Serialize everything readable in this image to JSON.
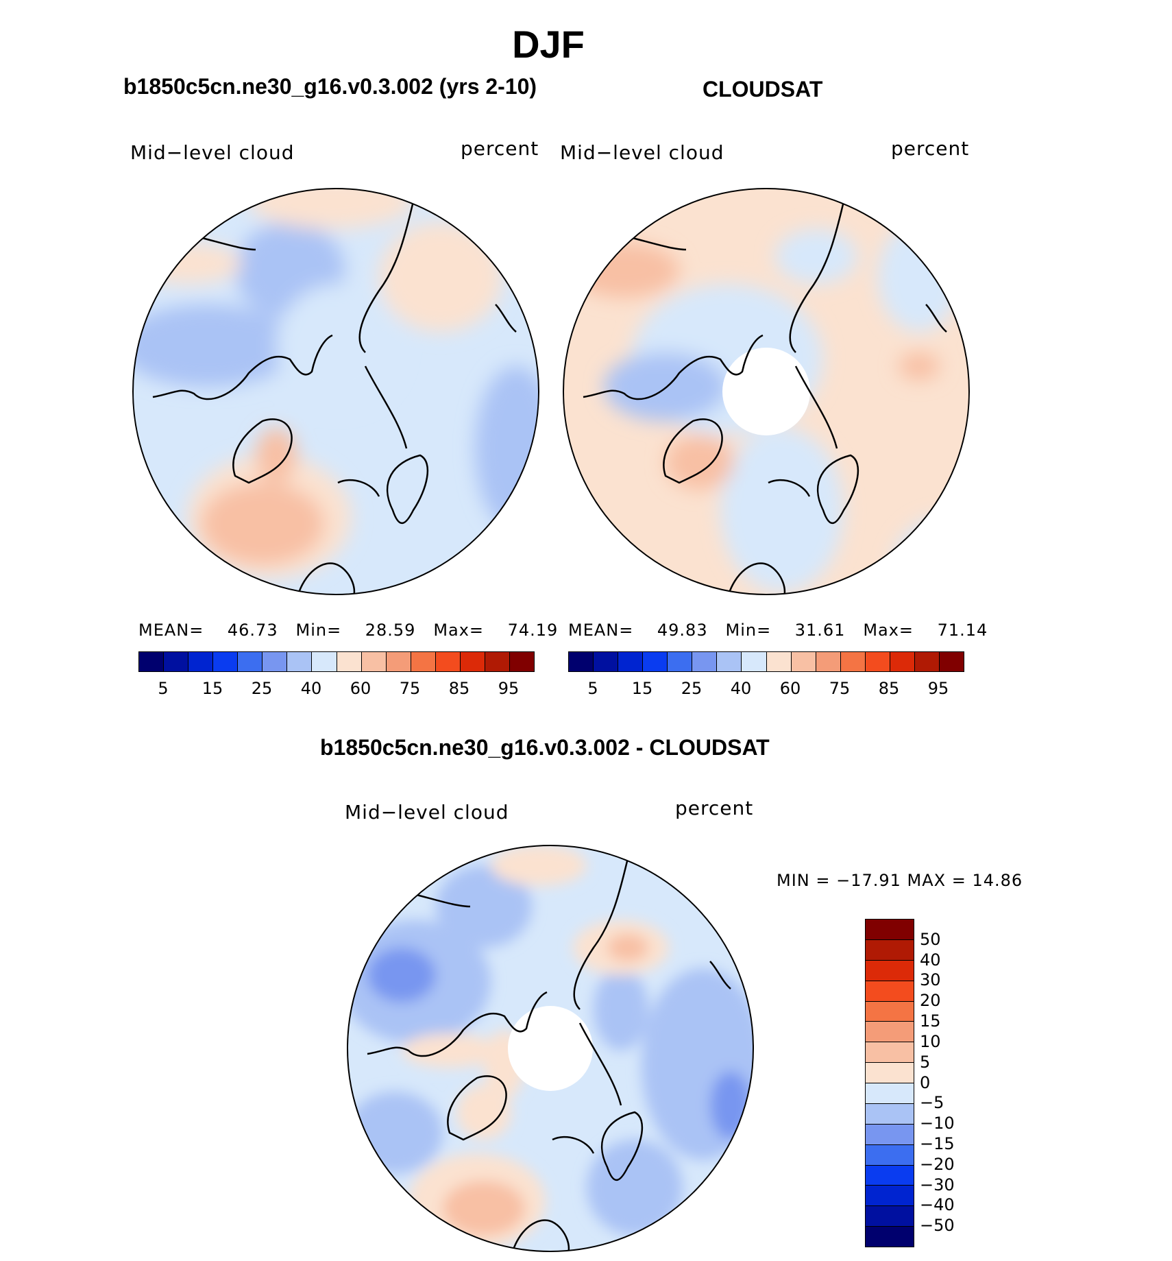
{
  "figure": {
    "title": "DJF",
    "diff_title": "b1850c5cn.ne30_g16.v0.3.002 - CLOUDSAT"
  },
  "panels": [
    {
      "title": "b1850c5cn.ne30_g16.v0.3.002 (yrs 2-10)",
      "variable": "Mid−level cloud",
      "units": "percent",
      "stats": {
        "mean_label": "MEAN=",
        "mean": "46.73",
        "min_label": "Min=",
        "min": "28.59",
        "max_label": "Max=",
        "max": "74.19"
      }
    },
    {
      "title": "CLOUDSAT",
      "variable": "Mid−level cloud",
      "units": "percent",
      "stats": {
        "mean_label": "MEAN=",
        "mean": "49.83",
        "min_label": "Min=",
        "min": "31.61",
        "max_label": "Max=",
        "max": "71.14"
      }
    }
  ],
  "diff_panel": {
    "variable": "Mid−level cloud",
    "units": "percent",
    "minmax": "MIN = −17.91 MAX =   14.86"
  },
  "colorbar_abs": {
    "colors": [
      "#00006e",
      "#0010a0",
      "#0024d0",
      "#0a3cf0",
      "#3c6ef0",
      "#7896f0",
      "#aac3f5",
      "#d7e8fb",
      "#fbe2d0",
      "#f8c0a4",
      "#f49c78",
      "#f47444",
      "#f34c1e",
      "#dc2a08",
      "#b01a04",
      "#800000"
    ],
    "ticks": [
      "5",
      "15",
      "25",
      "40",
      "60",
      "75",
      "85",
      "95"
    ]
  },
  "colorbar_diff": {
    "colors": [
      "#800000",
      "#b01a04",
      "#dc2a08",
      "#f34c1e",
      "#f47444",
      "#f49c78",
      "#f8c0a4",
      "#fbe2d0",
      "#d7e8fb",
      "#aac3f5",
      "#7896f0",
      "#3c6ef0",
      "#0a3cf0",
      "#0024d0",
      "#0010a0",
      "#00006e"
    ],
    "ticks": [
      "50",
      "40",
      "30",
      "20",
      "15",
      "10",
      "5",
      "0",
      "−5",
      "−10",
      "−15",
      "−20",
      "−30",
      "−40",
      "−50"
    ]
  }
}
